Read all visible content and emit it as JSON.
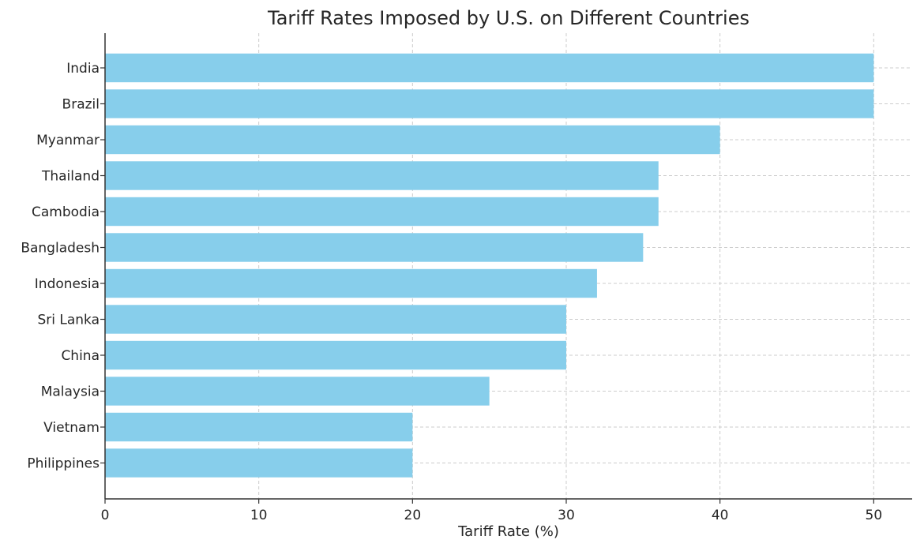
{
  "chart_data": {
    "type": "bar",
    "orientation": "horizontal",
    "title": "Tariff Rates Imposed by U.S. on Different Countries",
    "xlabel": "Tariff Rate (%)",
    "ylabel": "",
    "categories": [
      "India",
      "Brazil",
      "Myanmar",
      "Thailand",
      "Cambodia",
      "Bangladesh",
      "Indonesia",
      "Sri Lanka",
      "China",
      "Malaysia",
      "Vietnam",
      "Philippines"
    ],
    "values": [
      50,
      50,
      40,
      36,
      36,
      35,
      32,
      30,
      30,
      25,
      20,
      20
    ],
    "xlim": [
      0,
      52.5
    ],
    "xticks": [
      0,
      10,
      20,
      30,
      40,
      50
    ],
    "grid": true,
    "grid_style": "dashed",
    "bar_color": "#87CEEB",
    "grid_color": "#cccccc",
    "axis_color": "#333333"
  }
}
